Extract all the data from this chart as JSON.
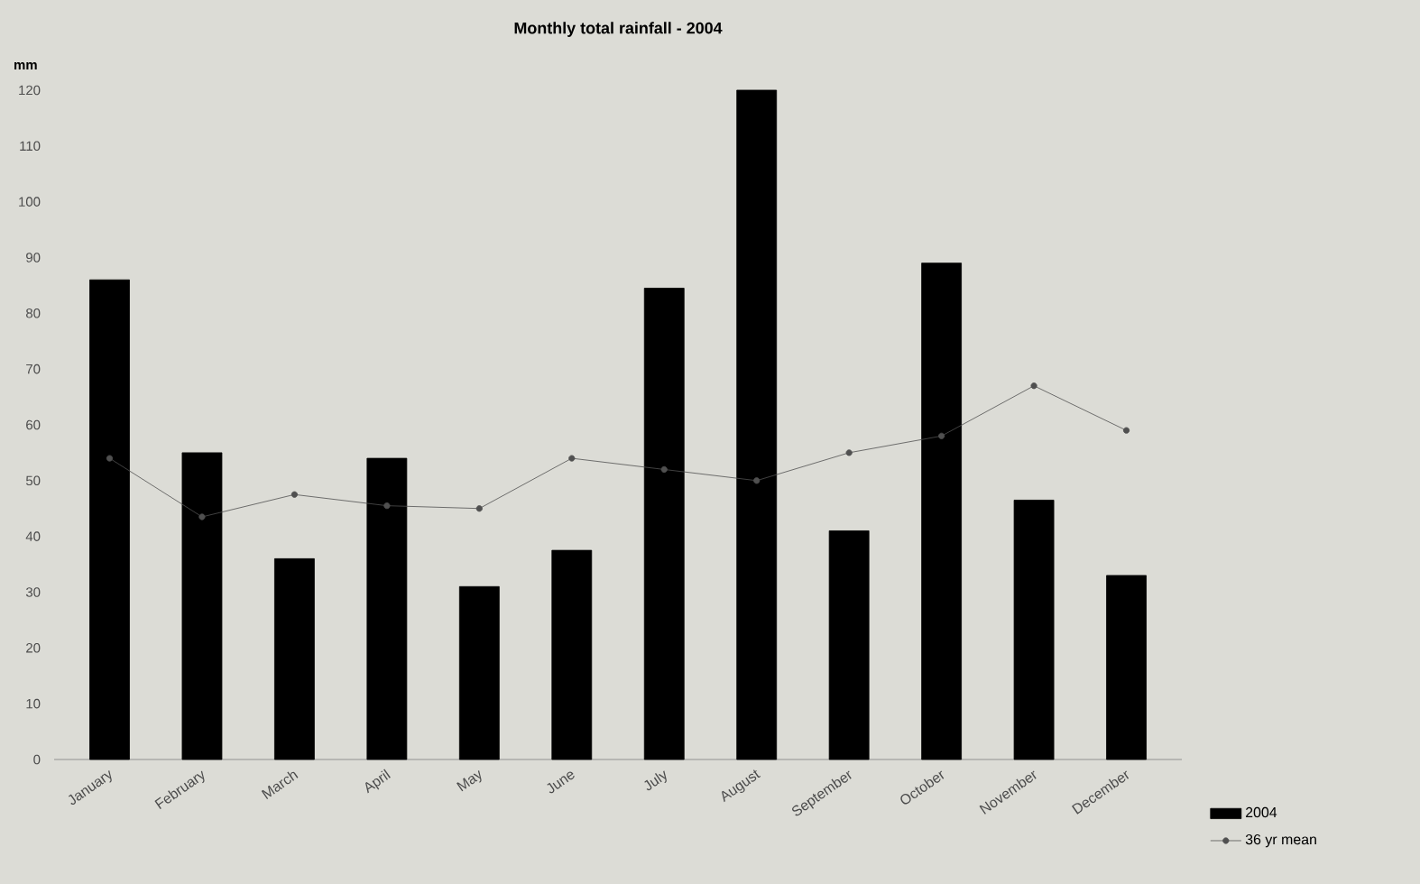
{
  "chart_data": {
    "type": "bar",
    "title": "Monthly total rainfall - 2004",
    "ylabel": "mm",
    "categories": [
      "January",
      "February",
      "March",
      "April",
      "May",
      "June",
      "July",
      "August",
      "September",
      "October",
      "November",
      "December"
    ],
    "series": [
      {
        "name": "2004",
        "color": "#000000",
        "values": [
          86,
          55,
          36,
          54,
          31,
          37.5,
          84.5,
          120,
          41,
          89,
          46.5,
          33
        ]
      },
      {
        "name": "36 yr  mean",
        "type": "line",
        "color": "#505050",
        "marker": "circle",
        "values": [
          54,
          43.5,
          47.5,
          45.5,
          45,
          54,
          52,
          50,
          55,
          58,
          67,
          59
        ]
      }
    ],
    "ylim": [
      0,
      120
    ],
    "yticks": [
      0,
      10,
      20,
      30,
      40,
      50,
      60,
      70,
      80,
      90,
      100,
      110,
      120
    ],
    "legend": "bottom right"
  }
}
